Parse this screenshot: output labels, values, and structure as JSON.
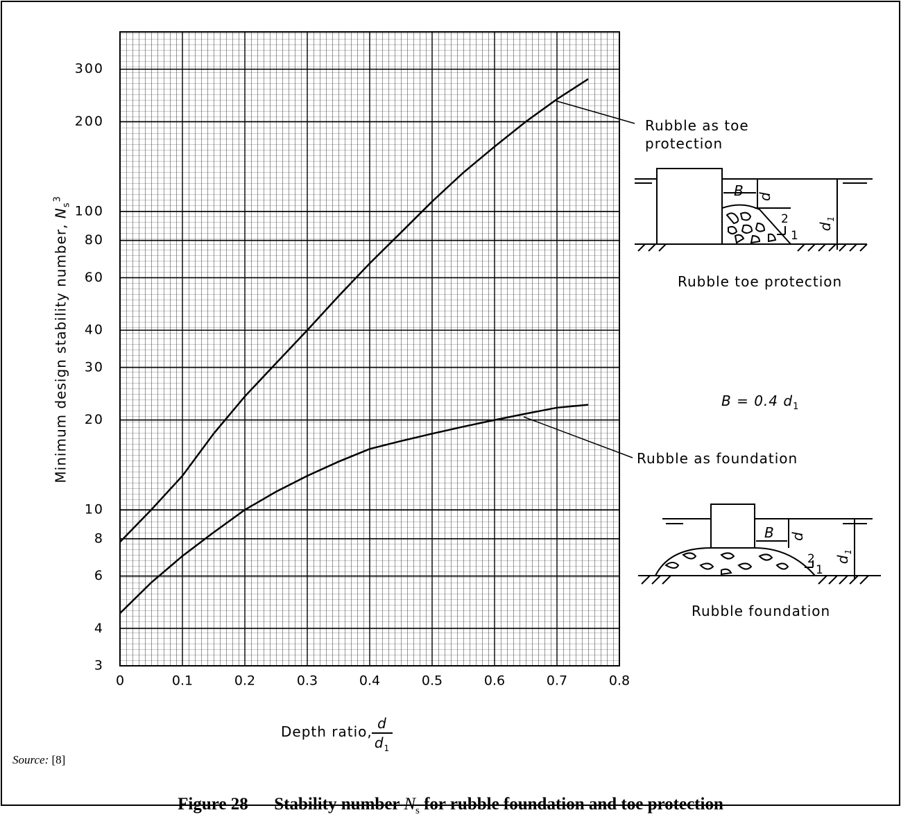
{
  "chart_data": {
    "type": "line",
    "y_label": "Minimum design stability number,",
    "y_label_symbol": "N",
    "y_label_sub": "s",
    "y_label_sup": "3",
    "x_label": "Depth ratio,",
    "x_label_num": "d",
    "x_label_den": "d",
    "x_label_den_sub": "1",
    "x": [
      0,
      0.05,
      0.1,
      0.15,
      0.2,
      0.25,
      0.3,
      0.35,
      0.4,
      0.45,
      0.5,
      0.55,
      0.6,
      0.65,
      0.7,
      0.75
    ],
    "series": [
      {
        "name": "Rubble as toe protection",
        "color": "#000000",
        "values": [
          7.8,
          10,
          13,
          18,
          24,
          31,
          40,
          52,
          67,
          85,
          108,
          135,
          165,
          200,
          238,
          278
        ]
      },
      {
        "name": "Rubble as foundation",
        "color": "#000000",
        "values": [
          4.5,
          5.7,
          7,
          8.4,
          10,
          11.5,
          13,
          14.5,
          16,
          17,
          18,
          19,
          20,
          21,
          22,
          22.5
        ]
      }
    ],
    "xlim": [
      0,
      0.8
    ],
    "xticks": [
      0,
      0.1,
      0.2,
      0.3,
      0.4,
      0.5,
      0.6,
      0.7,
      0.8
    ],
    "ylim": [
      3,
      400
    ],
    "yticks": [
      3,
      4,
      6,
      8,
      10,
      20,
      30,
      40,
      60,
      80,
      100,
      200,
      300
    ],
    "log_y": true,
    "grid": true,
    "formula": "B = 0.4 d",
    "formula_sub": "1",
    "diagrams": [
      {
        "title": "Rubble toe protection",
        "b": "B",
        "d": "d",
        "d1": "d",
        "d1_sub": "1",
        "slope_v": "2",
        "slope_h": "1"
      },
      {
        "title": "Rubble foundation",
        "b": "B",
        "d": "d",
        "d1": "d",
        "d1_sub": "1",
        "slope_v": "2",
        "slope_h": "1"
      }
    ]
  },
  "source_label": "Source:",
  "source_ref": "[8]",
  "caption": {
    "prefix": "Figure 28 — Stability number ",
    "symbol": "N",
    "sub": "s",
    "suffix": " for rubble foundation and toe protection"
  }
}
